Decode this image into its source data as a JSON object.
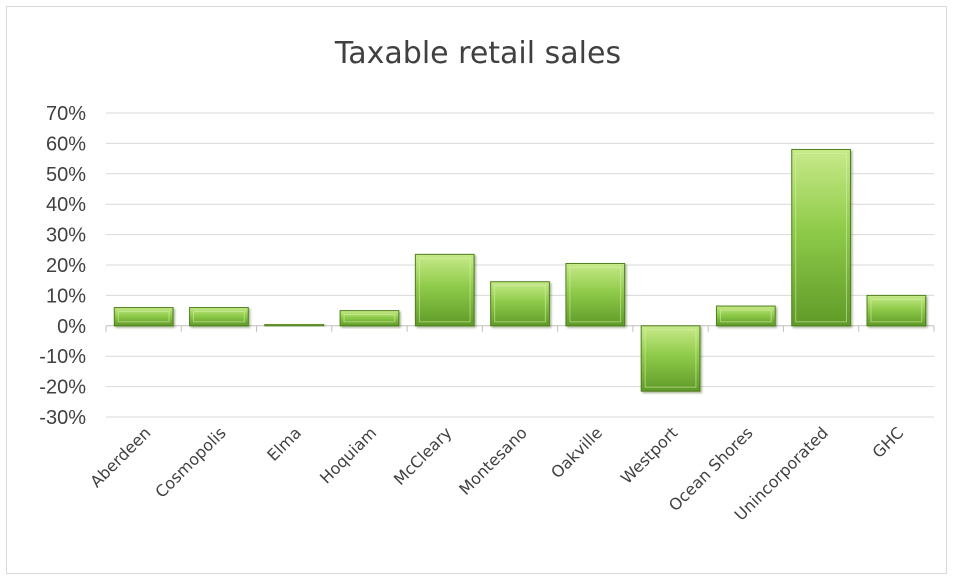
{
  "chart_data": {
    "type": "bar",
    "title": "Taxable retail sales",
    "xlabel": "",
    "ylabel": "",
    "categories": [
      "Aberdeen",
      "Cosmopolis",
      "Elma",
      "Hoquiam",
      "McCleary",
      "Montesano",
      "Oakville",
      "Westport",
      "Ocean Shores",
      "Unincorporated",
      "GHC"
    ],
    "values": [
      6,
      6,
      0.5,
      5,
      23.5,
      14.5,
      20.5,
      -21.5,
      6.5,
      58,
      10
    ],
    "y_tick_labels": [
      "70%",
      "60%",
      "50%",
      "40%",
      "30%",
      "20%",
      "10%",
      "0%",
      "-10%",
      "-20%",
      "-30%"
    ],
    "ylim": [
      -30,
      70
    ],
    "y_unit": "%",
    "grid": true,
    "legend": "none",
    "bar_color": "#8cc63f"
  }
}
